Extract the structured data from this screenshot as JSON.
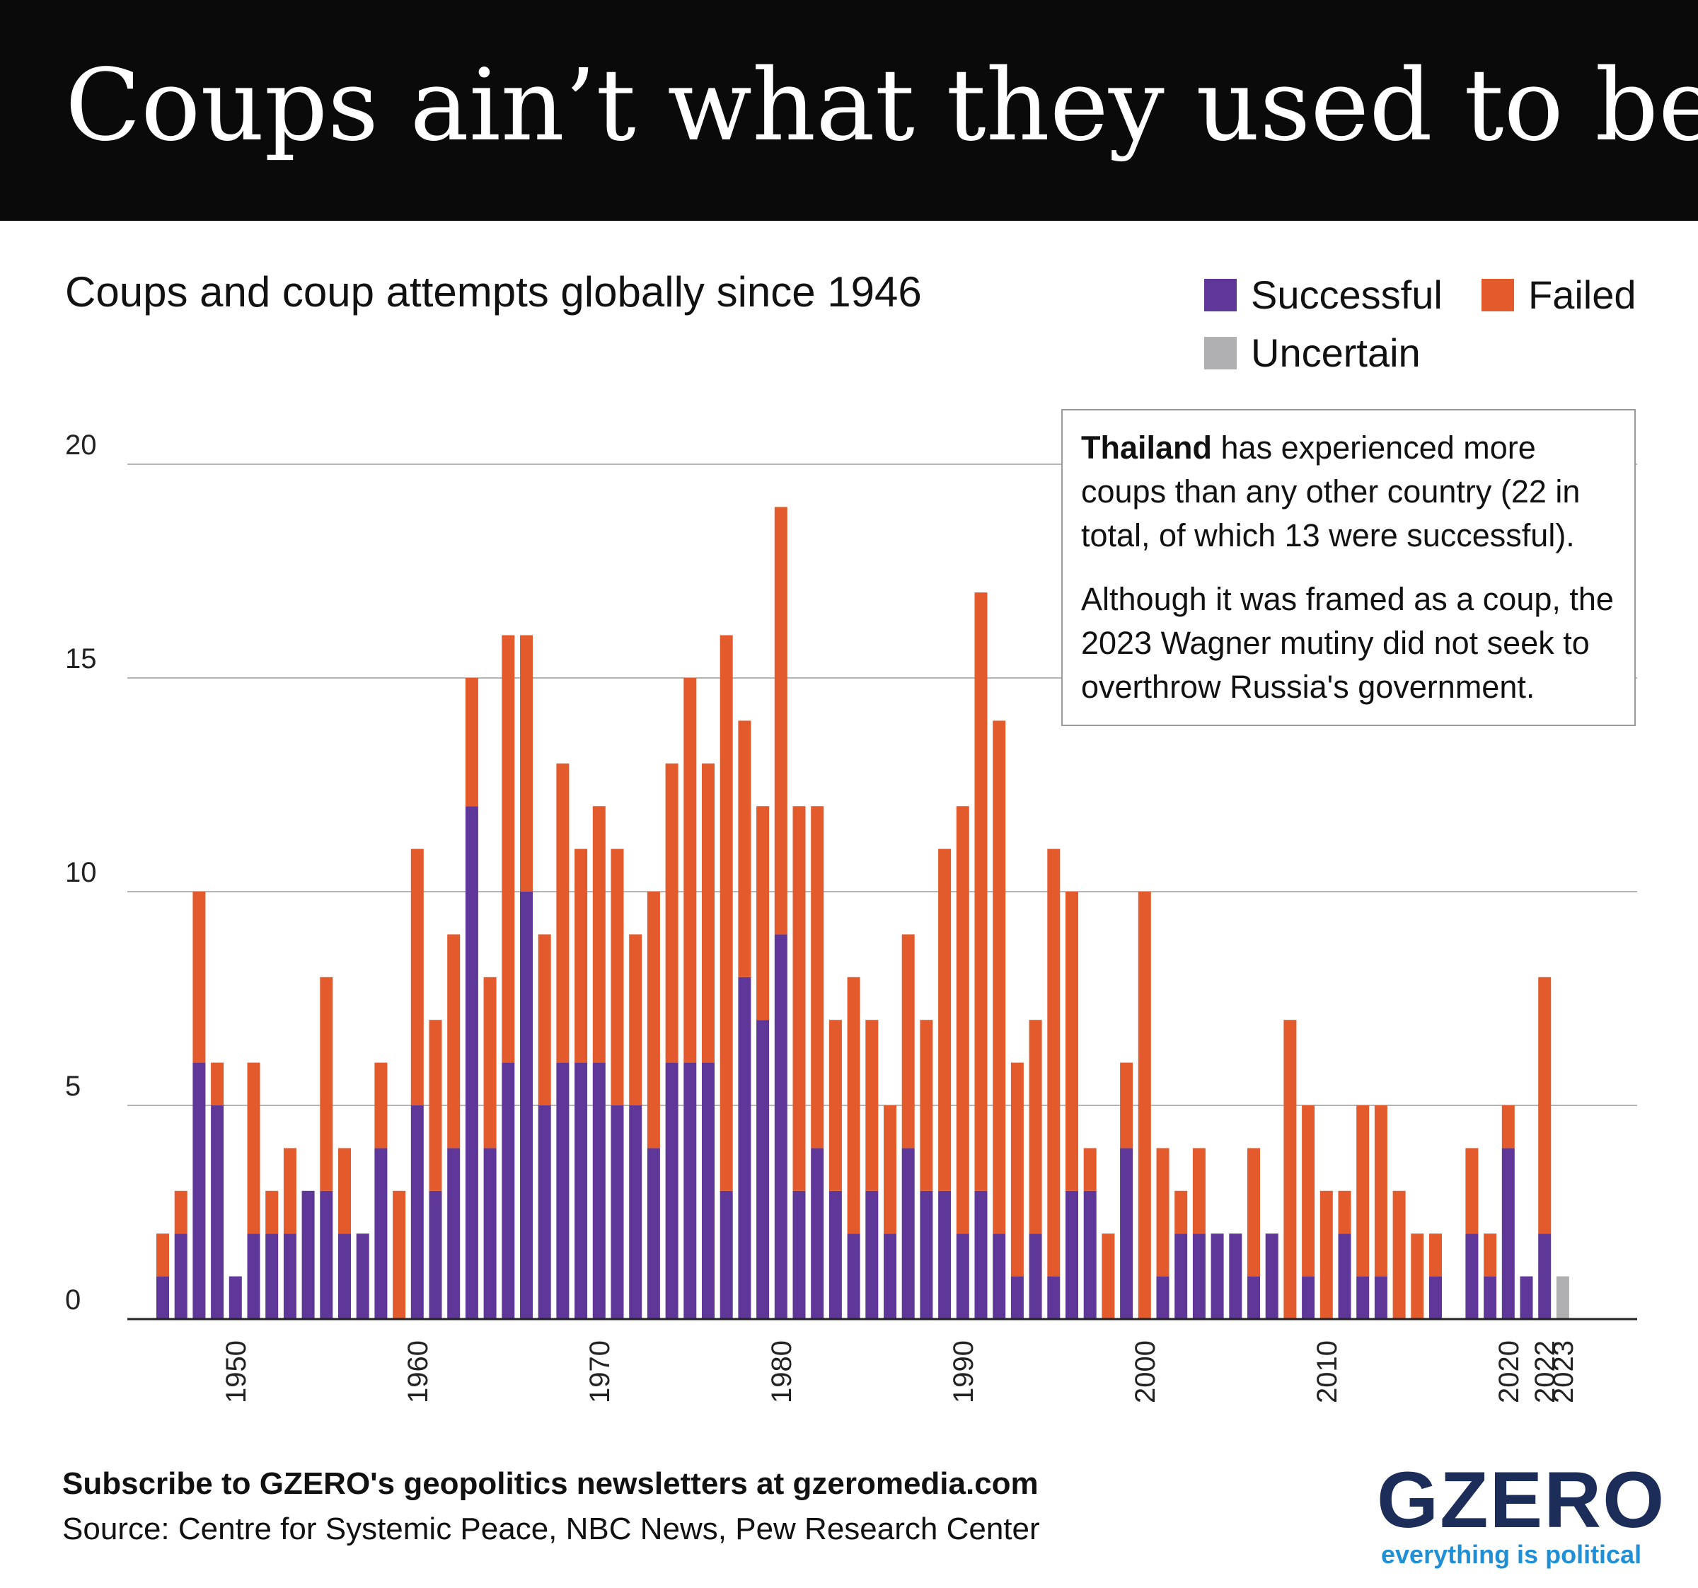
{
  "header": {
    "title": "Coups ain’t what they used to be"
  },
  "subtitle": "Coups and coup attempts globally since 1946",
  "legend": [
    {
      "label": "Successful",
      "color": "#5e3799"
    },
    {
      "label": "Failed",
      "color": "#e35b2c"
    },
    {
      "label": "Uncertain",
      "color": "#b0b0b3"
    }
  ],
  "annotation": {
    "bold": "Thailand",
    "text1": " has experienced more coups than any other country (22 in total, of which 13 were successful).",
    "text2": "Although it was framed as a coup, the 2023 Wagner mutiny did not seek to overthrow Russia's government."
  },
  "chart_data": {
    "type": "bar",
    "stacked": true,
    "title": "Coups and coup attempts globally since 1946",
    "xlabel": "",
    "ylabel": "",
    "ylim": [
      0,
      20
    ],
    "yticks": [
      0,
      5,
      10,
      15,
      20
    ],
    "xtick_labels": [
      "1950",
      "1960",
      "1970",
      "1980",
      "1990",
      "2000",
      "2010",
      "2020",
      "2022",
      "2023"
    ],
    "categories": [
      1946,
      1947,
      1948,
      1949,
      1950,
      1951,
      1952,
      1953,
      1954,
      1955,
      1956,
      1957,
      1958,
      1959,
      1960,
      1961,
      1962,
      1963,
      1964,
      1965,
      1966,
      1967,
      1968,
      1969,
      1970,
      1971,
      1972,
      1973,
      1974,
      1975,
      1976,
      1977,
      1978,
      1979,
      1980,
      1981,
      1982,
      1983,
      1984,
      1985,
      1986,
      1987,
      1988,
      1989,
      1990,
      1991,
      1992,
      1993,
      1994,
      1995,
      1996,
      1997,
      1998,
      1999,
      2000,
      2001,
      2002,
      2003,
      2004,
      2005,
      2006,
      2007,
      2008,
      2009,
      2010,
      2011,
      2012,
      2013,
      2014,
      2015,
      2016,
      2017,
      2018,
      2019,
      2020,
      2021,
      2022,
      2023
    ],
    "series": [
      {
        "name": "Successful",
        "color": "#5e3799",
        "values": [
          1,
          2,
          6,
          5,
          1,
          2,
          2,
          2,
          3,
          3,
          2,
          2,
          4,
          0,
          5,
          3,
          4,
          12,
          4,
          6,
          10,
          5,
          6,
          6,
          6,
          5,
          5,
          4,
          6,
          6,
          6,
          3,
          8,
          7,
          9,
          3,
          4,
          3,
          2,
          3,
          2,
          4,
          3,
          3,
          2,
          3,
          2,
          1,
          2,
          1,
          3,
          3,
          0,
          4,
          0,
          1,
          2,
          2,
          2,
          2,
          1,
          2,
          0,
          1,
          0,
          2,
          1,
          1,
          0,
          0,
          1,
          0,
          2,
          1,
          4,
          1,
          2,
          0
        ]
      },
      {
        "name": "Failed",
        "color": "#e35b2c",
        "values": [
          1,
          1,
          4,
          1,
          0,
          4,
          1,
          2,
          0,
          5,
          2,
          0,
          2,
          3,
          6,
          4,
          5,
          3,
          4,
          10,
          6,
          4,
          7,
          5,
          6,
          6,
          4,
          6,
          7,
          9,
          7,
          13,
          6,
          5,
          10,
          9,
          8,
          4,
          6,
          4,
          3,
          5,
          4,
          8,
          10,
          14,
          12,
          5,
          5,
          10,
          7,
          1,
          2,
          2,
          10,
          3,
          1,
          2,
          0,
          0,
          3,
          0,
          7,
          4,
          3,
          1,
          4,
          4,
          3,
          2,
          1,
          0,
          2,
          1,
          1,
          0,
          6,
          0
        ]
      },
      {
        "name": "Uncertain",
        "color": "#b0b0b3",
        "values": [
          0,
          0,
          0,
          0,
          0,
          0,
          0,
          0,
          0,
          0,
          0,
          0,
          0,
          0,
          0,
          0,
          0,
          0,
          0,
          0,
          0,
          0,
          0,
          0,
          0,
          0,
          0,
          0,
          0,
          0,
          0,
          0,
          0,
          0,
          0,
          0,
          0,
          0,
          0,
          0,
          0,
          0,
          0,
          0,
          0,
          0,
          0,
          0,
          0,
          0,
          0,
          0,
          0,
          0,
          0,
          0,
          0,
          0,
          0,
          0,
          0,
          0,
          0,
          0,
          0,
          0,
          0,
          0,
          0,
          0,
          0,
          0,
          0,
          0,
          0,
          0,
          0,
          1
        ]
      }
    ]
  },
  "footer": {
    "subscribe": "Subscribe to GZERO's geopolitics newsletters at gzeromedia.com",
    "source": "Source: Centre for Systemic Peace, NBC News, Pew Research Center"
  },
  "logo": {
    "name": "GZERO",
    "tagline": "everything is political"
  }
}
